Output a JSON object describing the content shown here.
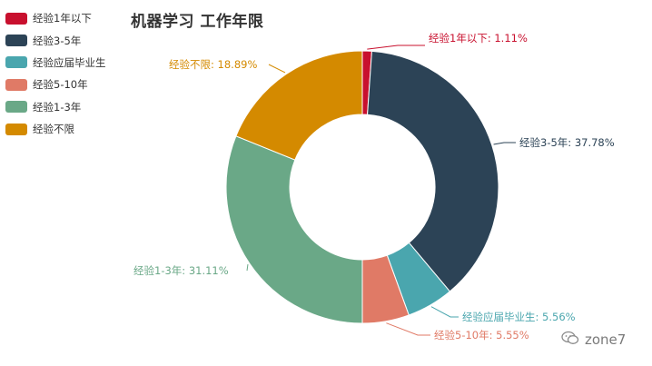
{
  "title": "机器学习 工作年限",
  "watermark": {
    "text": "zone7"
  },
  "chart_data": {
    "type": "pie",
    "donut": true,
    "title": "机器学习 工作年限",
    "legend_position": "top-left",
    "categories": [
      "经验1年以下",
      "经验3-5年",
      "经验应届毕业生",
      "经验5-10年",
      "经验1-3年",
      "经验不限"
    ],
    "values": [
      1.11,
      37.78,
      5.56,
      5.55,
      31.11,
      18.89
    ],
    "colors": [
      "#c8102e",
      "#2c4356",
      "#4aa6ae",
      "#e07a66",
      "#6aa887",
      "#d48a00"
    ],
    "labels": [
      "经验1年以下: 1.11%",
      "经验3-5年: 37.78%",
      "经验应届毕业生: 5.56%",
      "经验5-10年: 5.55%",
      "经验1-3年: 31.11%",
      "经验不限: 18.89%"
    ]
  }
}
